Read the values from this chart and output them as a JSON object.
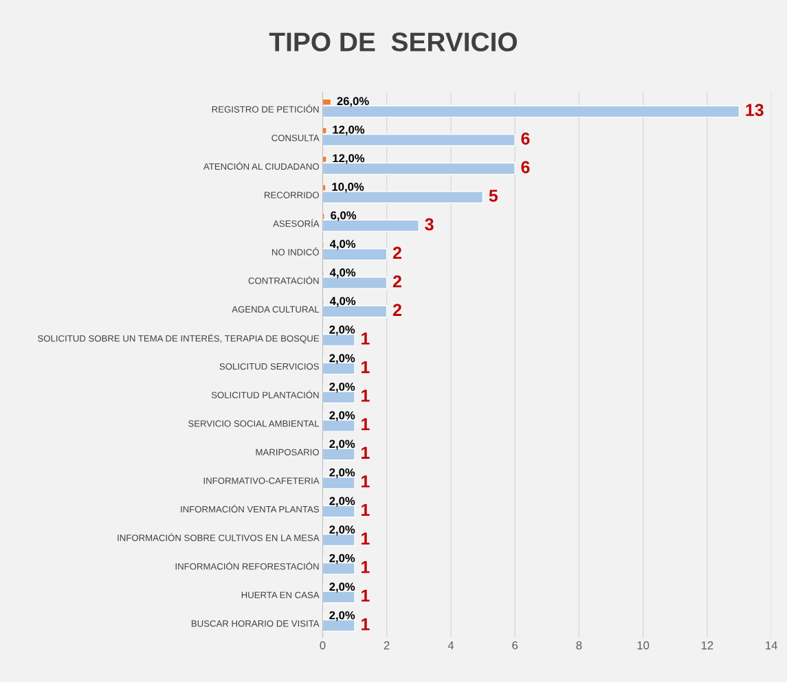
{
  "chart_data": {
    "type": "bar",
    "orientation": "horizontal",
    "title": "TIPO DE  SERVICIO",
    "categories": [
      "REGISTRO DE PETICIÓN",
      "CONSULTA",
      "ATENCIÓN AL CIUDADANO",
      "RECORRIDO",
      "ASESORÍA",
      "NO INDICÓ",
      "CONTRATACIÓN",
      "AGENDA CULTURAL",
      "SOLICITUD SOBRE UN TEMA DE INTERÉS, TERAPIA DE BOSQUE",
      "SOLICITUD SERVICIOS",
      "SOLICITUD PLANTACIÓN",
      "SERVICIO SOCIAL AMBIENTAL",
      "MARIPOSARIO",
      "INFORMATIVO-CAFETERIA",
      "INFORMACIÓN VENTA PLANTAS",
      "INFORMACIÓN SOBRE CULTIVOS EN LA MESA",
      "INFORMACIÓN REFORESTACIÓN",
      "HUERTA EN CASA",
      "BUSCAR HORARIO DE VISITA"
    ],
    "series": [
      {
        "color": "#ed7d31",
        "values": [
          0.26,
          0.12,
          0.12,
          0.1,
          0.06,
          0.04,
          0.04,
          0.04,
          0.02,
          0.02,
          0.02,
          0.02,
          0.02,
          0.02,
          0.02,
          0.02,
          0.02,
          0.02,
          0.02
        ],
        "value_labels": [
          "26,0%",
          "12,0%",
          "12,0%",
          "10,0%",
          "6,0%",
          "4,0%",
          "4,0%",
          "4,0%",
          "2,0%",
          "2,0%",
          "2,0%",
          "2,0%",
          "2,0%",
          "2,0%",
          "2,0%",
          "2,0%",
          "2,0%",
          "2,0%",
          "2,0%"
        ]
      },
      {
        "color": "#a9c8e8",
        "values": [
          13,
          6,
          6,
          5,
          3,
          2,
          2,
          2,
          1,
          1,
          1,
          1,
          1,
          1,
          1,
          1,
          1,
          1,
          1
        ],
        "value_labels": [
          "13",
          "6",
          "6",
          "5",
          "3",
          "2",
          "2",
          "2",
          "1",
          "1",
          "1",
          "1",
          "1",
          "1",
          "1",
          "1",
          "1",
          "1",
          "1"
        ]
      }
    ],
    "xlim": [
      0,
      14
    ],
    "xticks": [
      0,
      2,
      4,
      6,
      8,
      10,
      12,
      14
    ],
    "grid": "x",
    "legend": false
  }
}
